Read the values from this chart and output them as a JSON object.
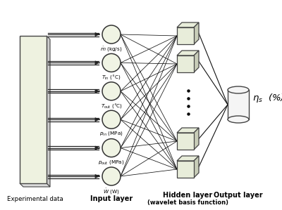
{
  "bg_color": "#ffffff",
  "rect_face": "#eef2e0",
  "rect_edge": "#444444",
  "rect_shadow": "#cccccc",
  "circle_face": "#f0f4e4",
  "circle_edge": "#333333",
  "cube_face": "#e8edda",
  "cube_edge": "#444444",
  "cube_shadow": "#c8cdb8",
  "cyl_face": "#f5f5f5",
  "cyl_edge": "#444444",
  "arrow_color": "#222222",
  "line_color": "#111111",
  "input_labels": [
    "$\\dot{m}$ (kg/s)",
    "$T_{\\mathrm{in}}$ (°C)",
    "$T_{\\mathrm{out}}$ (°C)",
    "$p_{\\mathrm{in}}$ (MPa)",
    "$p_{\\mathrm{out}}$ (MPa)",
    "$\\dot{W}$ (W)"
  ],
  "bottom_label_exp": "Experimental data",
  "bottom_label_inp": "Input layer",
  "bottom_label_hid1": "Hidden layer",
  "bottom_label_hid2": "(wavelet basis function)",
  "bottom_label_out": "Output layer",
  "output_label": "$\\eta_s$  (%)",
  "n_inputs": 6,
  "n_hidden_visible": 4,
  "n_dots": 4
}
